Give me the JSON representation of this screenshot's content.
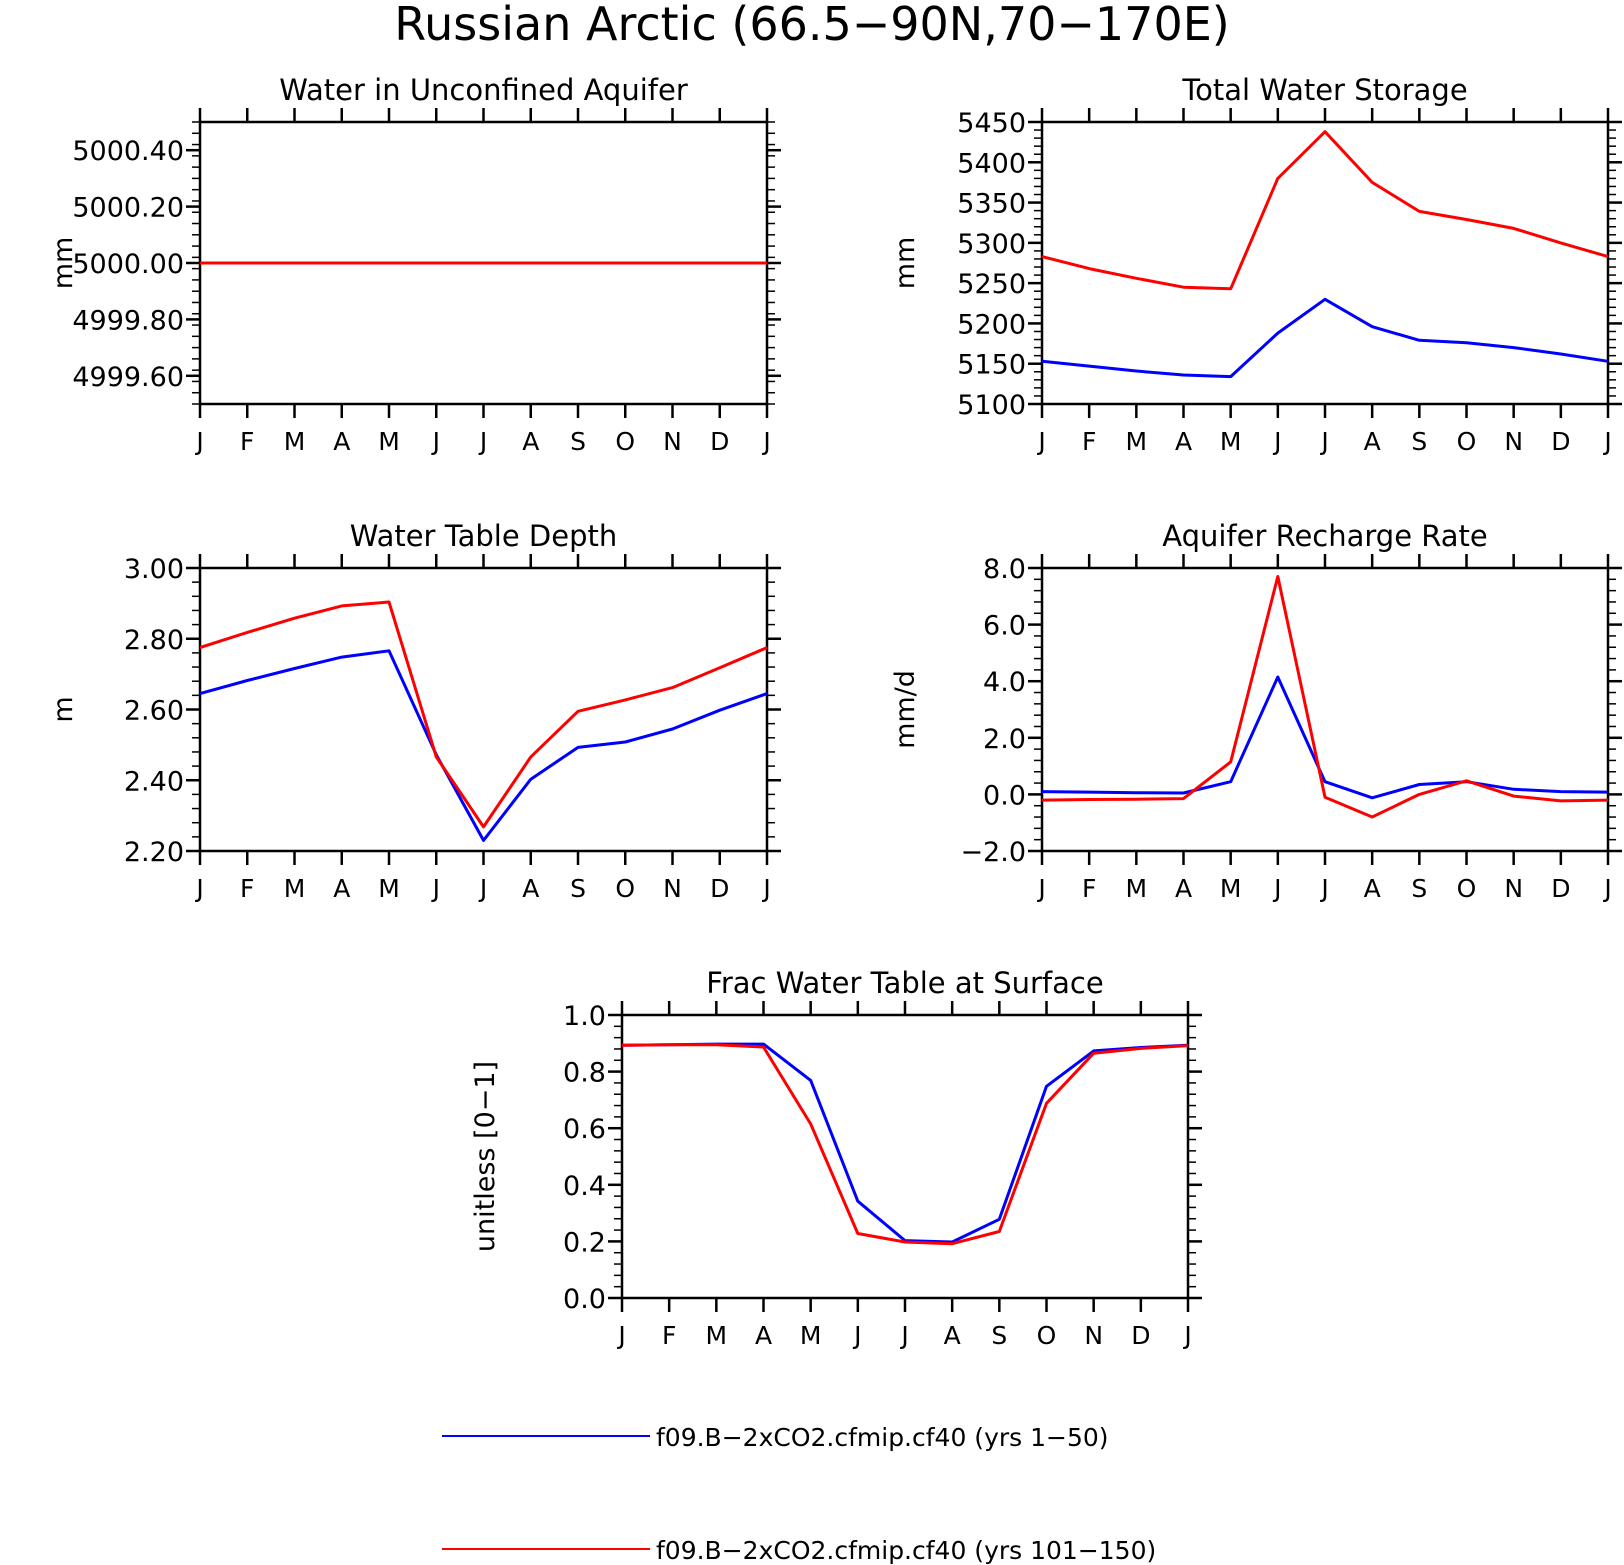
{
  "figure": {
    "title": "Russian Arctic (66.5−90N,70−170E)"
  },
  "colors": {
    "series_1": "#0000ff",
    "series_2": "#ff0000",
    "axis": "#000000",
    "background": "#ffffff"
  },
  "legend": {
    "placement": "bottom",
    "items": [
      {
        "label": "f09.B−2xCO2.cfmip.cf40 (yrs 1−50)",
        "color": "#0000ff"
      },
      {
        "label": "f09.B−2xCO2.cfmip.cf40 (yrs 101−150)",
        "color": "#ff0000"
      }
    ]
  },
  "chart_data": [
    {
      "type": "line",
      "title": "Water in Unconfined Aquifer",
      "ylabel": "mm",
      "xlabel": "",
      "categories": [
        "J",
        "F",
        "M",
        "A",
        "M",
        "J",
        "J",
        "A",
        "S",
        "O",
        "N",
        "D",
        "J"
      ],
      "ylim": [
        4999.5,
        5000.5
      ],
      "yticks": [
        4999.6,
        4999.8,
        5000.0,
        5000.2,
        5000.4
      ],
      "ytick_labels": [
        "4999.60",
        "4999.80",
        "5000.00",
        "5000.20",
        "5000.40"
      ],
      "grid": false,
      "series": [
        {
          "values": [
            5000.0,
            5000.0,
            5000.0,
            5000.0,
            5000.0,
            5000.0,
            5000.0,
            5000.0,
            5000.0,
            5000.0,
            5000.0,
            5000.0,
            5000.0
          ]
        },
        {
          "values": [
            5000.0,
            5000.0,
            5000.0,
            5000.0,
            5000.0,
            5000.0,
            5000.0,
            5000.0,
            5000.0,
            5000.0,
            5000.0,
            5000.0,
            5000.0
          ]
        }
      ]
    },
    {
      "type": "line",
      "title": "Total Water Storage",
      "ylabel": "mm",
      "xlabel": "",
      "categories": [
        "J",
        "F",
        "M",
        "A",
        "M",
        "J",
        "J",
        "A",
        "S",
        "O",
        "N",
        "D",
        "J"
      ],
      "ylim": [
        5100,
        5450
      ],
      "yticks": [
        5100,
        5150,
        5200,
        5250,
        5300,
        5350,
        5400,
        5450
      ],
      "ytick_labels": [
        "5100",
        "5150",
        "5200",
        "5250",
        "5300",
        "5350",
        "5400",
        "5450"
      ],
      "grid": false,
      "series": [
        {
          "values": [
            5153,
            5147,
            5141,
            5136,
            5134,
            5188,
            5230,
            5196,
            5179,
            5176,
            5170,
            5162,
            5153
          ]
        },
        {
          "values": [
            5283,
            5268,
            5256,
            5245,
            5243,
            5380,
            5438,
            5375,
            5339,
            5329,
            5318,
            5300,
            5283
          ]
        }
      ]
    },
    {
      "type": "line",
      "title": "Water Table Depth",
      "ylabel": "m",
      "xlabel": "",
      "categories": [
        "J",
        "F",
        "M",
        "A",
        "M",
        "J",
        "J",
        "A",
        "S",
        "O",
        "N",
        "D",
        "J"
      ],
      "ylim": [
        2.2,
        3.0
      ],
      "yticks": [
        2.2,
        2.4,
        2.6,
        2.8,
        3.0
      ],
      "ytick_labels": [
        "2.20",
        "2.40",
        "2.60",
        "2.80",
        "3.00"
      ],
      "grid": false,
      "series": [
        {
          "values": [
            2.645,
            2.682,
            2.716,
            2.748,
            2.766,
            2.472,
            2.23,
            2.403,
            2.493,
            2.508,
            2.545,
            2.598,
            2.645
          ]
        },
        {
          "values": [
            2.775,
            2.818,
            2.858,
            2.893,
            2.904,
            2.466,
            2.268,
            2.466,
            2.595,
            2.627,
            2.662,
            2.718,
            2.775
          ]
        }
      ]
    },
    {
      "type": "line",
      "title": "Aquifer Recharge Rate",
      "ylabel": "mm/d",
      "xlabel": "",
      "categories": [
        "J",
        "F",
        "M",
        "A",
        "M",
        "J",
        "J",
        "A",
        "S",
        "O",
        "N",
        "D",
        "J"
      ],
      "ylim": [
        -2.0,
        8.0
      ],
      "yticks": [
        -2.0,
        0.0,
        2.0,
        4.0,
        6.0,
        8.0
      ],
      "ytick_labels": [
        "−2.0",
        "0.0",
        "2.0",
        "4.0",
        "6.0",
        "8.0"
      ],
      "grid": false,
      "series": [
        {
          "values": [
            0.1,
            0.08,
            0.06,
            0.05,
            0.45,
            4.15,
            0.45,
            -0.12,
            0.35,
            0.45,
            0.18,
            0.1,
            0.08
          ]
        },
        {
          "values": [
            -0.2,
            -0.18,
            -0.17,
            -0.15,
            1.15,
            7.7,
            -0.1,
            -0.8,
            0.0,
            0.48,
            -0.06,
            -0.23,
            -0.2
          ]
        }
      ]
    },
    {
      "type": "line",
      "title": "Frac Water Table at Surface",
      "ylabel": "unitless [0−1]",
      "xlabel": "",
      "categories": [
        "J",
        "F",
        "M",
        "A",
        "M",
        "J",
        "J",
        "A",
        "S",
        "O",
        "N",
        "D",
        "J"
      ],
      "ylim": [
        0.0,
        1.0
      ],
      "yticks": [
        0.0,
        0.2,
        0.4,
        0.6,
        0.8,
        1.0
      ],
      "ytick_labels": [
        "0.0",
        "0.2",
        "0.4",
        "0.6",
        "0.8",
        "1.0"
      ],
      "grid": false,
      "series": [
        {
          "values": [
            0.893,
            0.895,
            0.897,
            0.897,
            0.769,
            0.342,
            0.203,
            0.198,
            0.278,
            0.748,
            0.873,
            0.885,
            0.893
          ]
        },
        {
          "values": [
            0.893,
            0.895,
            0.895,
            0.887,
            0.615,
            0.228,
            0.198,
            0.192,
            0.235,
            0.688,
            0.865,
            0.882,
            0.892
          ]
        }
      ]
    }
  ]
}
